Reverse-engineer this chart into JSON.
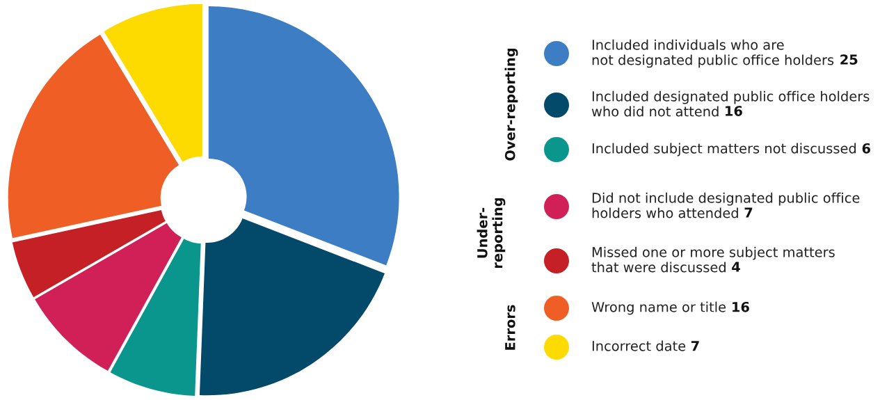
{
  "chart_data": {
    "type": "donut",
    "categories": [
      "Included individuals who are\nnot designated public office holders",
      "Included designated public office holders\nwho did not attend",
      "Included subject matters not discussed",
      "Did not include designated public office\nholders who attended",
      "Missed one or more subject matters\nthat were discussed",
      "Wrong name or title",
      "Incorrect date"
    ],
    "values": [
      25,
      16,
      6,
      7,
      4,
      16,
      7
    ],
    "colors": [
      "#3d7dc3",
      "#02496a",
      "#0b968d",
      "#d11f58",
      "#c42026",
      "#ef5f25",
      "#fddb00"
    ],
    "data_labels": true,
    "legend": "right",
    "annotations": [
      "Over-reporting",
      "Under-\nreporting",
      "Errors"
    ]
  }
}
